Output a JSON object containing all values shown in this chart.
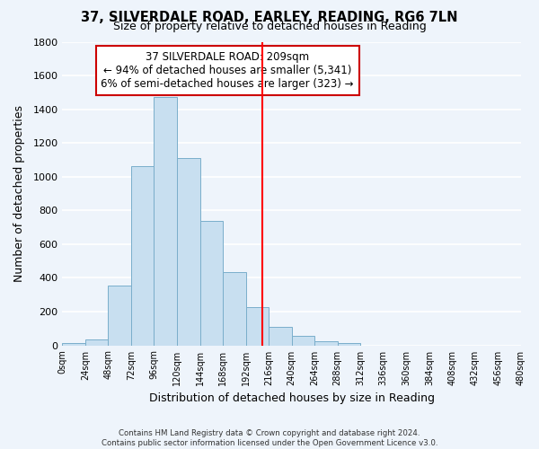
{
  "title": "37, SILVERDALE ROAD, EARLEY, READING, RG6 7LN",
  "subtitle": "Size of property relative to detached houses in Reading",
  "xlabel": "Distribution of detached houses by size in Reading",
  "ylabel": "Number of detached properties",
  "bar_color": "#c8dff0",
  "bar_edge_color": "#7aaecb",
  "bin_edges": [
    0,
    24,
    48,
    72,
    96,
    120,
    144,
    168,
    192,
    216,
    240,
    264,
    288,
    312,
    336,
    360,
    384,
    408,
    432,
    456,
    480
  ],
  "bar_heights": [
    15,
    35,
    355,
    1060,
    1470,
    1110,
    740,
    435,
    225,
    110,
    55,
    25,
    15,
    0,
    0,
    0,
    0,
    0,
    0,
    0
  ],
  "reference_line_x": 209,
  "reference_line_color": "red",
  "annotation_title": "37 SILVERDALE ROAD: 209sqm",
  "annotation_line1": "← 94% of detached houses are smaller (5,341)",
  "annotation_line2": "6% of semi-detached houses are larger (323) →",
  "ylim": [
    0,
    1800
  ],
  "yticks": [
    0,
    200,
    400,
    600,
    800,
    1000,
    1200,
    1400,
    1600,
    1800
  ],
  "xtick_labels": [
    "0sqm",
    "24sqm",
    "48sqm",
    "72sqm",
    "96sqm",
    "120sqm",
    "144sqm",
    "168sqm",
    "192sqm",
    "216sqm",
    "240sqm",
    "264sqm",
    "288sqm",
    "312sqm",
    "336sqm",
    "360sqm",
    "384sqm",
    "408sqm",
    "432sqm",
    "456sqm",
    "480sqm"
  ],
  "footer_line1": "Contains HM Land Registry data © Crown copyright and database right 2024.",
  "footer_line2": "Contains public sector information licensed under the Open Government Licence v3.0.",
  "bg_color": "#eef4fb",
  "grid_color": "#ffffff"
}
